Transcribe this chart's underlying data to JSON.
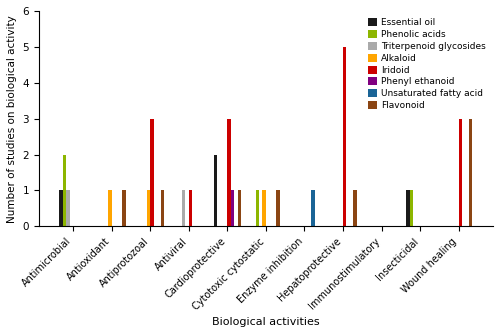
{
  "categories": [
    "Antimicrobial",
    "Antioxidant",
    "Antiprotozoal",
    "Antiviral",
    "Cardioprotective",
    "Cytotoxic cytostatic",
    "Enzyme inhibition",
    "Hepatoprotective",
    "Immunostimulatory",
    "Insecticidal",
    "Wound healing"
  ],
  "compounds": [
    "Essential oil",
    "Phenolic acids",
    "Triterpenoid glycosides",
    "Alkaloid",
    "Iridoid",
    "Phenyl ethanoid",
    "Unsaturated fatty acid",
    "Flavonoid"
  ],
  "colors": [
    "#1a1a1a",
    "#8db600",
    "#aaaaaa",
    "#ffa500",
    "#cc0000",
    "#800080",
    "#1a6496",
    "#8b4513"
  ],
  "data": {
    "Essential oil": [
      1,
      0,
      0,
      0,
      2,
      0,
      0,
      0,
      0,
      1,
      0
    ],
    "Phenolic acids": [
      2,
      0,
      0,
      0,
      0,
      1,
      0,
      0,
      0,
      1,
      0
    ],
    "Triterpenoid glycosides": [
      1,
      0,
      0,
      1,
      0,
      0,
      0,
      0,
      0,
      0,
      0
    ],
    "Alkaloid": [
      0,
      1,
      1,
      0,
      0,
      1,
      0,
      0,
      0,
      0,
      0
    ],
    "Iridoid": [
      0,
      0,
      3,
      1,
      3,
      0,
      0,
      5,
      0,
      0,
      3
    ],
    "Phenyl ethanoid": [
      0,
      0,
      0,
      0,
      1,
      0,
      0,
      0,
      0,
      0,
      0
    ],
    "Unsaturated fatty acid": [
      0,
      0,
      0,
      0,
      0,
      0,
      1,
      0,
      0,
      0,
      0
    ],
    "Flavonoid": [
      0,
      1,
      1,
      0,
      1,
      1,
      0,
      1,
      0,
      0,
      3
    ]
  },
  "ylabel": "Number of studies on biological activity",
  "xlabel": "Biological activities",
  "ylim": [
    0,
    6
  ],
  "yticks": [
    0,
    1,
    2,
    3,
    4,
    5,
    6
  ],
  "figsize": [
    5.0,
    3.34
  ],
  "dpi": 100
}
